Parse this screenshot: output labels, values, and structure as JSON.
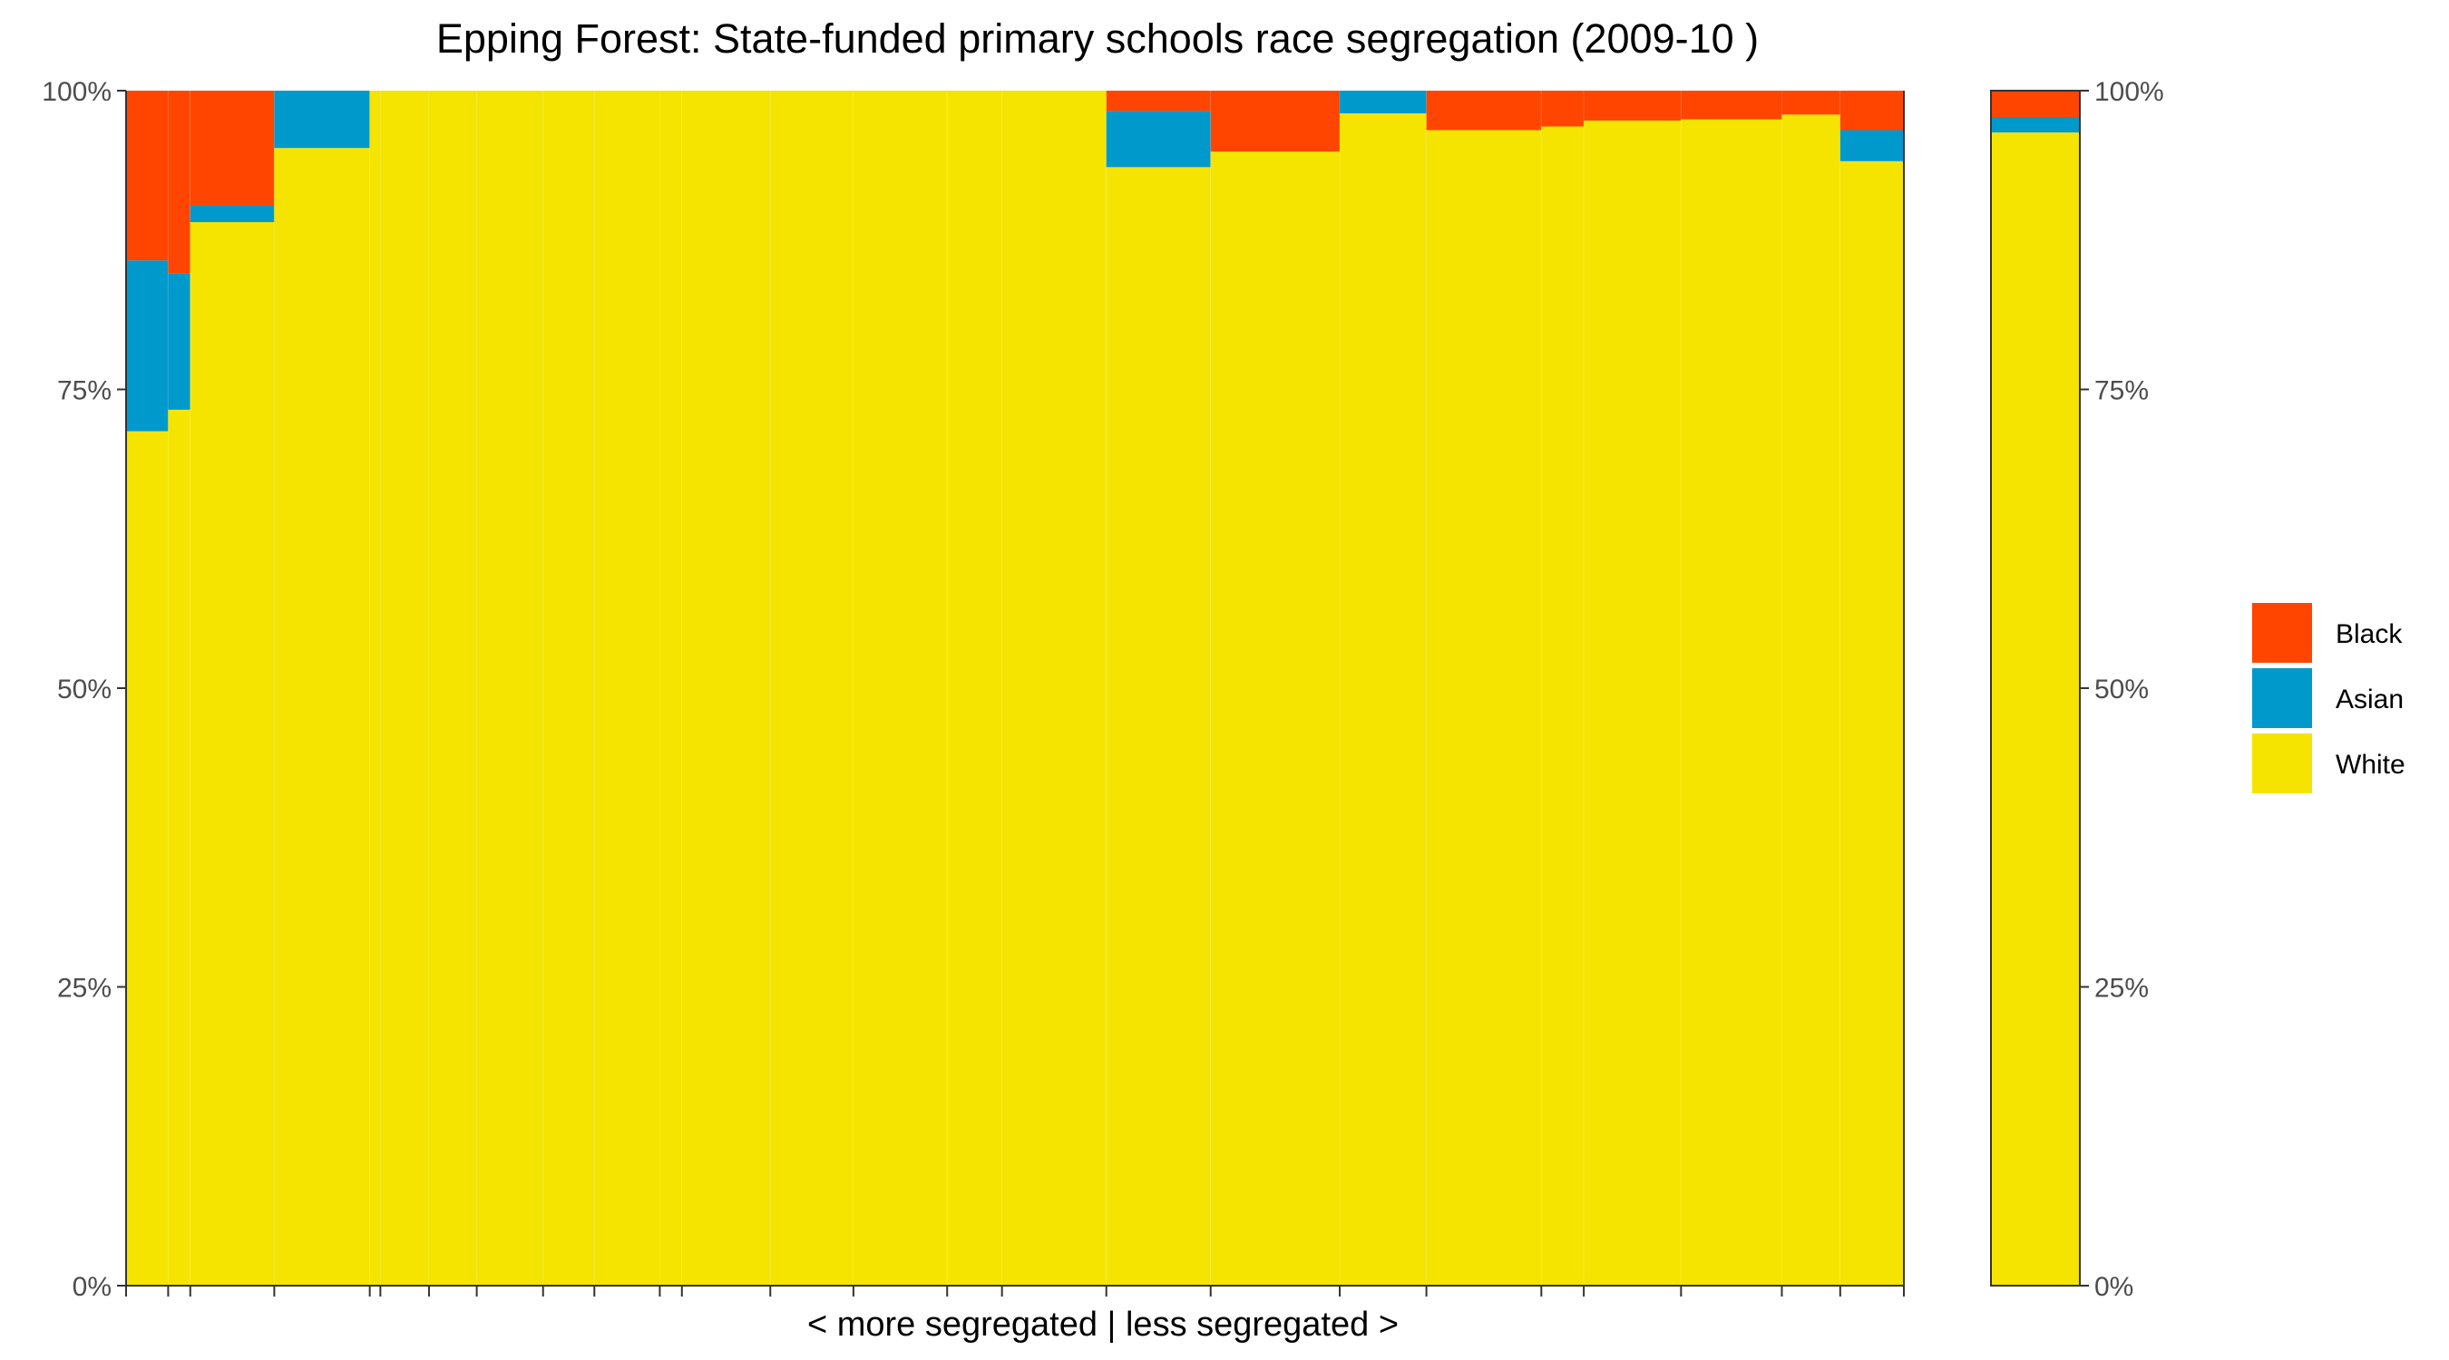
{
  "chart_data": {
    "type": "bar",
    "title": "Epping Forest: State-funded primary schools race segregation (2009-10 )",
    "xlabel": "< more segregated | less segregated >",
    "ylabel": "",
    "ylim": [
      0,
      1
    ],
    "y_ticks": [
      "0%",
      "25%",
      "50%",
      "75%",
      "100%"
    ],
    "legend_position": "right",
    "grid": false,
    "legend": [
      {
        "name": "Black",
        "color": "#FF4500"
      },
      {
        "name": "Asian",
        "color": "#0099CC"
      },
      {
        "name": "White",
        "color": "#F5E400"
      }
    ],
    "schools": [
      {
        "share": 0.0238,
        "white": 0.715,
        "asian": 0.143,
        "black": 0.142
      },
      {
        "share": 0.0125,
        "white": 0.733,
        "asian": 0.114,
        "black": 0.153
      },
      {
        "share": 0.0475,
        "white": 0.89,
        "asian": 0.014,
        "black": 0.096
      },
      {
        "share": 0.054,
        "white": 0.952,
        "asian": 0.048,
        "black": 0.0
      },
      {
        "share": 0.006,
        "white": 1.0,
        "asian": 0.0,
        "black": 0.0
      },
      {
        "share": 0.0275,
        "white": 1.0,
        "asian": 0.0,
        "black": 0.0
      },
      {
        "share": 0.027,
        "white": 1.0,
        "asian": 0.0,
        "black": 0.0
      },
      {
        "share": 0.0375,
        "white": 1.0,
        "asian": 0.0,
        "black": 0.0
      },
      {
        "share": 0.029,
        "white": 1.0,
        "asian": 0.0,
        "black": 0.0
      },
      {
        "share": 0.037,
        "white": 1.0,
        "asian": 0.0,
        "black": 0.0
      },
      {
        "share": 0.0125,
        "white": 1.0,
        "asian": 0.0,
        "black": 0.0
      },
      {
        "share": 0.05,
        "white": 1.0,
        "asian": 0.0,
        "black": 0.0
      },
      {
        "share": 0.047,
        "white": 1.0,
        "asian": 0.0,
        "black": 0.0
      },
      {
        "share": 0.053,
        "white": 1.0,
        "asian": 0.0,
        "black": 0.0
      },
      {
        "share": 0.031,
        "white": 1.0,
        "asian": 0.0,
        "black": 0.0
      },
      {
        "share": 0.059,
        "white": 1.0,
        "asian": 0.0,
        "black": 0.0
      },
      {
        "share": 0.059,
        "white": 0.936,
        "asian": 0.047,
        "black": 0.017
      },
      {
        "share": 0.073,
        "white": 0.949,
        "asian": 0.0,
        "black": 0.051
      },
      {
        "share": 0.049,
        "white": 0.981,
        "asian": 0.019,
        "black": 0.0
      },
      {
        "share": 0.065,
        "white": 0.967,
        "asian": 0.0,
        "black": 0.033
      },
      {
        "share": 0.024,
        "white": 0.97,
        "asian": 0.0,
        "black": 0.03
      },
      {
        "share": 0.055,
        "white": 0.975,
        "asian": 0.0,
        "black": 0.025
      },
      {
        "share": 0.057,
        "white": 0.976,
        "asian": 0.0,
        "black": 0.024
      },
      {
        "share": 0.033,
        "white": 0.98,
        "asian": 0.0,
        "black": 0.02
      },
      {
        "share": 0.036,
        "white": 0.941,
        "asian": 0.026,
        "black": 0.033
      }
    ],
    "overall": {
      "white": 0.965,
      "asian": 0.013,
      "black": 0.022
    }
  }
}
